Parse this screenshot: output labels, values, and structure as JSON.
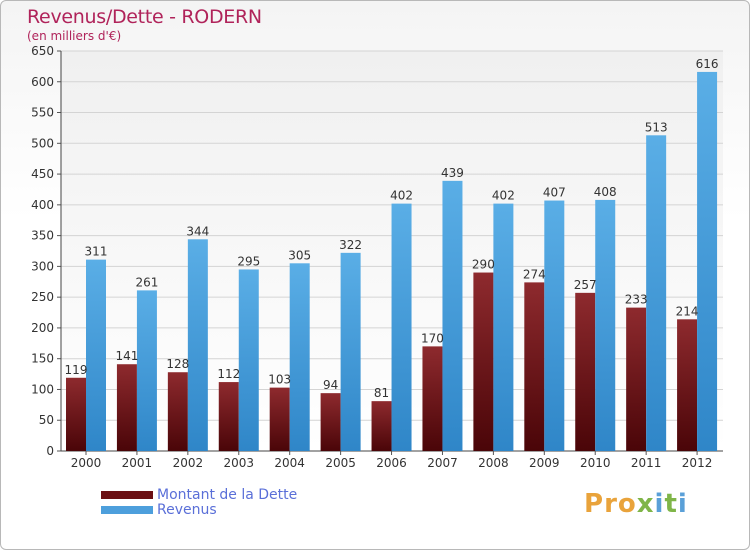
{
  "title": "Revenus/Dette - RODERN",
  "subtitle": "(en milliers d'€)",
  "logo": "Proxiti",
  "colors": {
    "debt": "#7a1a1f",
    "revenue": "#4d9fdc",
    "title": "#b0235a",
    "legend_text": "#5a6fd8"
  },
  "legend": [
    {
      "label": "Montant de la Dette",
      "color": "#6b0f13"
    },
    {
      "label": "Revenus",
      "color": "#4d9fdc"
    }
  ],
  "chart_data": {
    "type": "bar",
    "categories": [
      "2000",
      "2001",
      "2002",
      "2003",
      "2004",
      "2005",
      "2006",
      "2007",
      "2008",
      "2009",
      "2010",
      "2011",
      "2012"
    ],
    "series": [
      {
        "name": "Montant de la Dette",
        "values": [
          119,
          141,
          128,
          112,
          103,
          94,
          81,
          170,
          290,
          274,
          257,
          233,
          214
        ]
      },
      {
        "name": "Revenus",
        "values": [
          311,
          261,
          344,
          295,
          305,
          322,
          402,
          439,
          402,
          407,
          408,
          513,
          616
        ]
      }
    ],
    "ylim": [
      0,
      650
    ],
    "yticks": [
      0,
      50,
      100,
      150,
      200,
      250,
      300,
      350,
      400,
      450,
      500,
      550,
      600,
      650
    ],
    "grid": true,
    "legend_position": "bottom-left"
  }
}
